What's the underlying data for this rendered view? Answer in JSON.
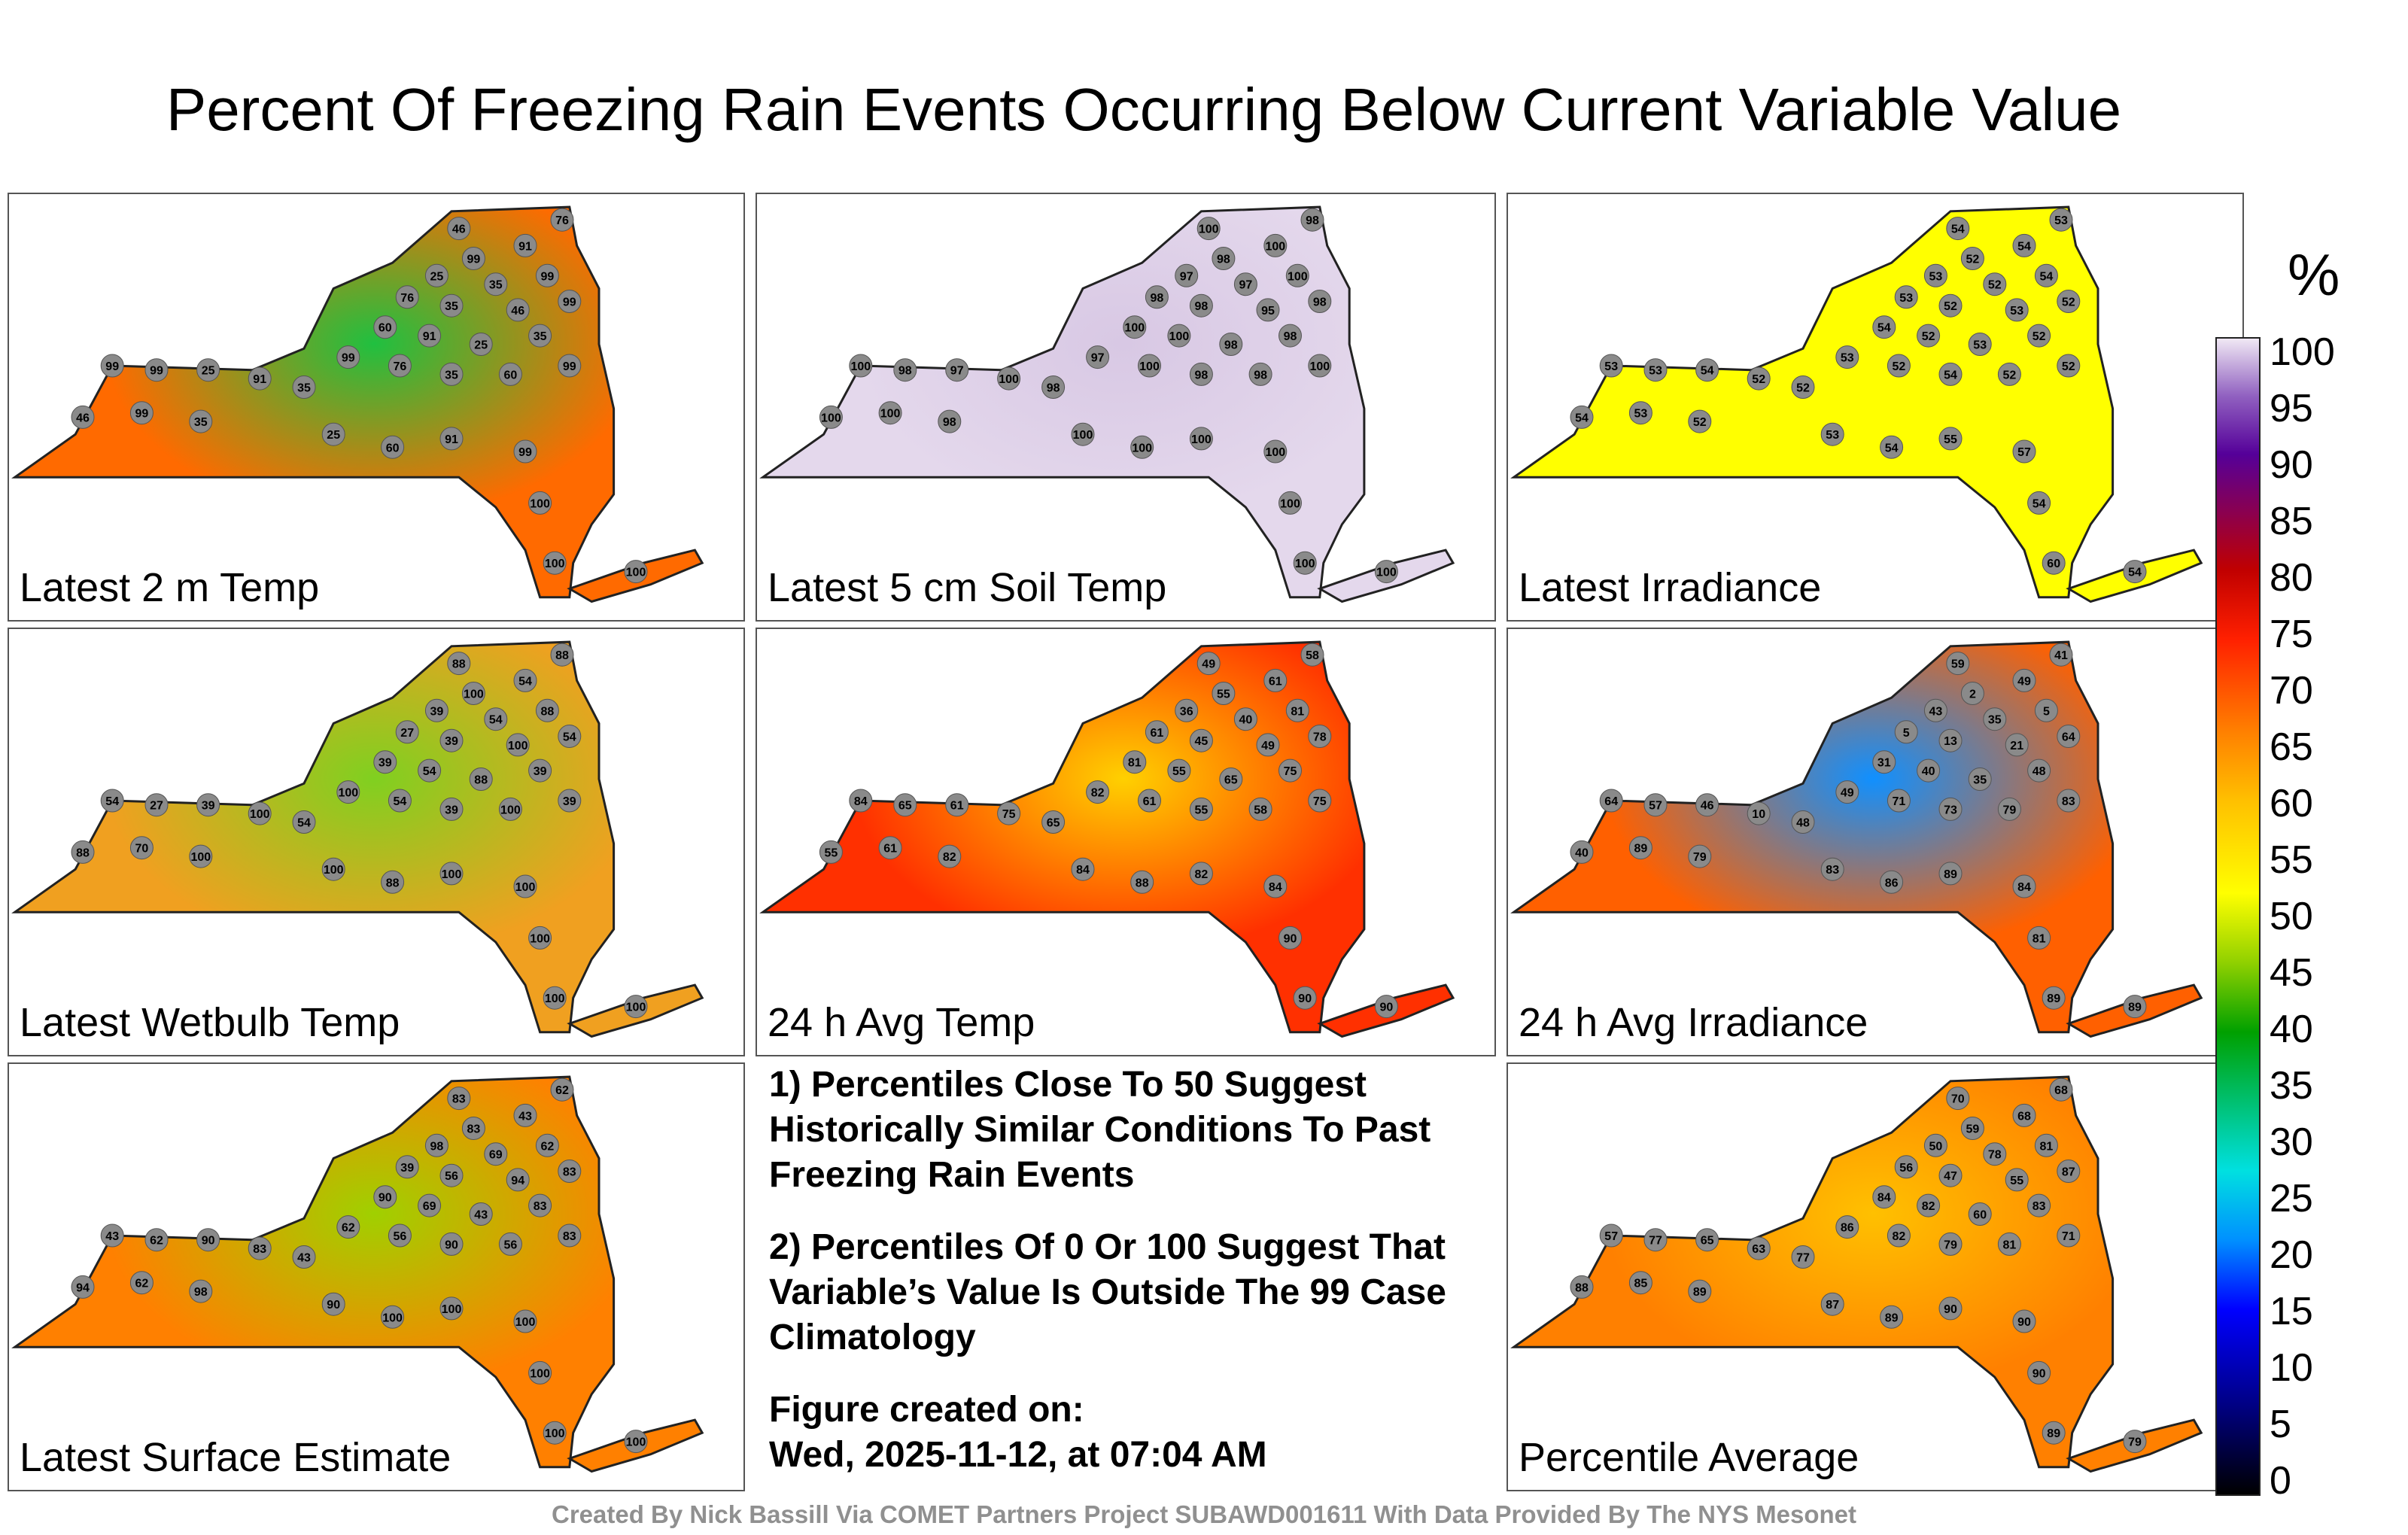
{
  "title": "Percent Of Freezing Rain Events Occurring Below Current Variable Value",
  "panels": [
    {
      "label": "Latest 2 m Temp",
      "fill": "#ff6a00",
      "accent": "#20c040",
      "values": [
        "76",
        "46",
        "91",
        "99",
        "25",
        "35",
        "99",
        "76",
        "35",
        "46",
        "99",
        "60",
        "91",
        "25",
        "35",
        "99",
        "76",
        "35",
        "60",
        "99",
        "99",
        "99",
        "25",
        "91",
        "35",
        "46",
        "99",
        "35",
        "25",
        "60",
        "91",
        "99",
        "100",
        "100",
        "100"
      ]
    },
    {
      "label": "Latest 5 cm Soil Temp",
      "fill": "#e4d8ec",
      "accent": "#d8c8e4",
      "values": [
        "98",
        "100",
        "100",
        "98",
        "97",
        "97",
        "100",
        "98",
        "98",
        "95",
        "98",
        "100",
        "100",
        "98",
        "98",
        "97",
        "100",
        "98",
        "98",
        "100",
        "100",
        "98",
        "97",
        "100",
        "98",
        "100",
        "100",
        "98",
        "100",
        "100",
        "100",
        "100",
        "100",
        "100",
        "100"
      ]
    },
    {
      "label": "Latest Irradiance",
      "fill": "#ffff00",
      "accent": "#ffff00",
      "values": [
        "53",
        "54",
        "54",
        "52",
        "53",
        "52",
        "54",
        "53",
        "52",
        "53",
        "52",
        "54",
        "52",
        "53",
        "52",
        "53",
        "52",
        "54",
        "52",
        "52",
        "53",
        "53",
        "54",
        "52",
        "52",
        "54",
        "53",
        "52",
        "53",
        "54",
        "55",
        "57",
        "54",
        "60",
        "54"
      ]
    },
    {
      "label": "Latest Wetbulb Temp",
      "fill": "#f0a020",
      "accent": "#80d020",
      "values": [
        "88",
        "88",
        "54",
        "100",
        "39",
        "54",
        "88",
        "27",
        "39",
        "100",
        "54",
        "39",
        "54",
        "88",
        "39",
        "100",
        "54",
        "39",
        "100",
        "39",
        "54",
        "27",
        "39",
        "100",
        "54",
        "88",
        "70",
        "100",
        "100",
        "88",
        "100",
        "100",
        "100",
        "100",
        "100"
      ]
    },
    {
      "label": "24 h Avg Temp",
      "fill": "#ff3000",
      "accent": "#ffd000",
      "values": [
        "58",
        "49",
        "61",
        "55",
        "36",
        "40",
        "81",
        "61",
        "45",
        "49",
        "78",
        "81",
        "55",
        "65",
        "75",
        "82",
        "61",
        "55",
        "58",
        "75",
        "84",
        "65",
        "61",
        "75",
        "65",
        "55",
        "61",
        "82",
        "84",
        "88",
        "82",
        "84",
        "90",
        "90",
        "90"
      ]
    },
    {
      "label": "24 h Avg Irradiance",
      "fill": "#ff6000",
      "accent": "#1090ff",
      "values": [
        "41",
        "59",
        "49",
        "2",
        "43",
        "35",
        "5",
        "5",
        "13",
        "21",
        "64",
        "31",
        "40",
        "35",
        "48",
        "49",
        "71",
        "73",
        "79",
        "83",
        "64",
        "57",
        "46",
        "10",
        "48",
        "40",
        "89",
        "79",
        "83",
        "86",
        "89",
        "84",
        "81",
        "89",
        "89"
      ]
    },
    {
      "label": "Latest Surface Estimate",
      "fill": "#ff8000",
      "accent": "#a0d000",
      "values": [
        "62",
        "83",
        "43",
        "83",
        "98",
        "69",
        "62",
        "39",
        "56",
        "94",
        "83",
        "90",
        "69",
        "43",
        "83",
        "62",
        "56",
        "90",
        "56",
        "83",
        "43",
        "62",
        "90",
        "83",
        "43",
        "94",
        "62",
        "98",
        "90",
        "100",
        "100",
        "100",
        "100",
        "100",
        "100"
      ]
    },
    {
      "label": "Percentile Average",
      "fill": "#ff8000",
      "accent": "#ffc000",
      "values": [
        "68",
        "70",
        "68",
        "59",
        "50",
        "78",
        "81",
        "56",
        "47",
        "55",
        "87",
        "84",
        "82",
        "60",
        "83",
        "86",
        "82",
        "79",
        "81",
        "71",
        "57",
        "77",
        "65",
        "63",
        "77",
        "88",
        "85",
        "89",
        "87",
        "89",
        "90",
        "90",
        "90",
        "89",
        "79"
      ]
    }
  ],
  "notes": [
    "1) Percentiles Close To 50 Suggest Historically Similar Conditions To Past Freezing Rain Events",
    "2) Percentiles Of 0 Or 100 Suggest That Variable’s Value Is Outside The 99 Case Climatology"
  ],
  "created_label": "Figure created on:",
  "created_date": "Wed, 2025-11-12, at 07:04 AM",
  "colorbar": {
    "unit": "%",
    "ticks": [
      "100",
      "95",
      "90",
      "85",
      "80",
      "75",
      "70",
      "65",
      "60",
      "55",
      "50",
      "45",
      "40",
      "35",
      "30",
      "25",
      "20",
      "15",
      "10",
      "5",
      "0"
    ]
  },
  "footer": "Created By Nick Bassill Via COMET Partners Project SUBAWD001611 With Data Provided By The NYS Mesonet"
}
